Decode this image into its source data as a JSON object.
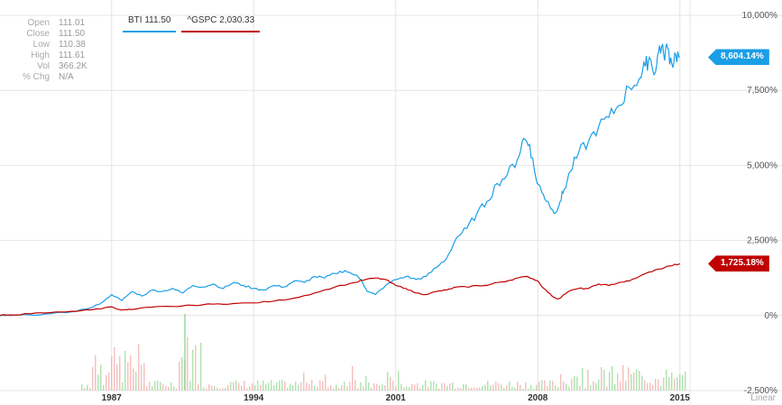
{
  "stats": [
    {
      "label": "Open",
      "value": "111.01"
    },
    {
      "label": "Close",
      "value": "111.50"
    },
    {
      "label": "Low",
      "value": "110.38"
    },
    {
      "label": "High",
      "value": "111.61"
    },
    {
      "label": "Vol",
      "value": "366.2K"
    },
    {
      "label": "% Chg",
      "value": "N/A"
    }
  ],
  "legend": [
    {
      "label": "BTI 111.50",
      "color": "#1a9fe6"
    },
    {
      "label": "^GSPC 2,030.33",
      "color": "#c00000"
    }
  ],
  "flags": [
    {
      "label": "8,604.14%",
      "color": "#1a9fe6",
      "value": 8604.14
    },
    {
      "label": "1,725.18%",
      "color": "#c00000",
      "value": 1725.18
    }
  ],
  "chart_data": {
    "type": "line",
    "ylim": [
      -2500,
      10000
    ],
    "xlim": [
      1981.5,
      2015.5
    ],
    "yticks": [
      {
        "value": 10000,
        "label": "10,000%"
      },
      {
        "value": 7500,
        "label": "7,500%"
      },
      {
        "value": 5000,
        "label": "5,000%"
      },
      {
        "value": 2500,
        "label": "2,500%"
      },
      {
        "value": 0,
        "label": "0%"
      },
      {
        "value": -2500,
        "label": "-2,500%"
      }
    ],
    "xticks": [
      {
        "value": 1987,
        "label": "1987"
      },
      {
        "value": 1994,
        "label": "1994"
      },
      {
        "value": 2001,
        "label": "2001"
      },
      {
        "value": 2008,
        "label": "2008"
      },
      {
        "value": 2015,
        "label": "2015"
      }
    ],
    "scale_label": "Linear",
    "series": [
      {
        "name": "BTI",
        "color": "#1a9fe6",
        "x": [
          1981.5,
          1982,
          1983,
          1984,
          1985,
          1986,
          1986.5,
          1987,
          1987.5,
          1988,
          1988.5,
          1989,
          1989.5,
          1990,
          1990.5,
          1991,
          1991.5,
          1992,
          1992.5,
          1993,
          1993.5,
          1994,
          1994.5,
          1995,
          1995.5,
          1996,
          1996.5,
          1997,
          1997.5,
          1998,
          1998.5,
          1999,
          1999.3,
          1999.6,
          2000,
          2000.5,
          2001,
          2001.5,
          2002,
          2002.5,
          2003,
          2003.5,
          2004,
          2004.5,
          2005,
          2005.5,
          2006,
          2006.5,
          2007,
          2007.3,
          2007.6,
          2007.9,
          2008.2,
          2008.5,
          2008.8,
          2009.1,
          2009.3,
          2009.6,
          2010,
          2010.5,
          2011,
          2011.5,
          2012,
          2012.5,
          2013,
          2013.3,
          2013.5,
          2013.8,
          2014,
          2014.2,
          2014.4,
          2014.6,
          2014.8,
          2015
        ],
        "y": [
          0,
          0,
          20,
          60,
          120,
          260,
          420,
          700,
          500,
          800,
          650,
          850,
          800,
          900,
          750,
          1000,
          950,
          1050,
          900,
          1100,
          1000,
          900,
          850,
          1000,
          950,
          1150,
          1100,
          1300,
          1250,
          1400,
          1500,
          1350,
          1200,
          800,
          700,
          1000,
          1200,
          1300,
          1200,
          1300,
          1600,
          1900,
          2600,
          2900,
          3400,
          3800,
          4400,
          4700,
          5200,
          5900,
          5700,
          4600,
          4100,
          3800,
          3400,
          3800,
          4200,
          4800,
          5400,
          5800,
          6300,
          6600,
          7000,
          7600,
          7900,
          8300,
          8600,
          8100,
          9000,
          8700,
          8900,
          8400,
          8700,
          8600
        ]
      },
      {
        "name": "^GSPC",
        "color": "#c00000",
        "x": [
          1981.5,
          1982,
          1983,
          1984,
          1985,
          1986,
          1987,
          1987.5,
          1988,
          1989,
          1990,
          1991,
          1992,
          1993,
          1994,
          1995,
          1996,
          1997,
          1998,
          1999,
          1999.5,
          2000,
          2000.5,
          2001,
          2001.5,
          2002,
          2002.5,
          2003,
          2003.5,
          2004,
          2004.5,
          2005,
          2005.5,
          2006,
          2006.5,
          2007,
          2007.5,
          2008,
          2008.3,
          2008.7,
          2009,
          2009.5,
          2010,
          2010.5,
          2011,
          2011.5,
          2012,
          2012.5,
          2013,
          2013.5,
          2014,
          2014.5,
          2015
        ],
        "y": [
          0,
          20,
          60,
          100,
          140,
          190,
          290,
          180,
          200,
          280,
          300,
          340,
          380,
          400,
          420,
          480,
          580,
          750,
          950,
          1100,
          1200,
          1250,
          1200,
          1000,
          900,
          750,
          700,
          800,
          850,
          950,
          950,
          1000,
          1000,
          1100,
          1150,
          1250,
          1300,
          1150,
          900,
          650,
          550,
          800,
          900,
          900,
          1050,
          1000,
          1100,
          1150,
          1300,
          1450,
          1550,
          1650,
          1725
        ]
      }
    ],
    "volume": {
      "note_series_colors": [
        "#8fd88f",
        "#f2a6a6"
      ]
    }
  }
}
